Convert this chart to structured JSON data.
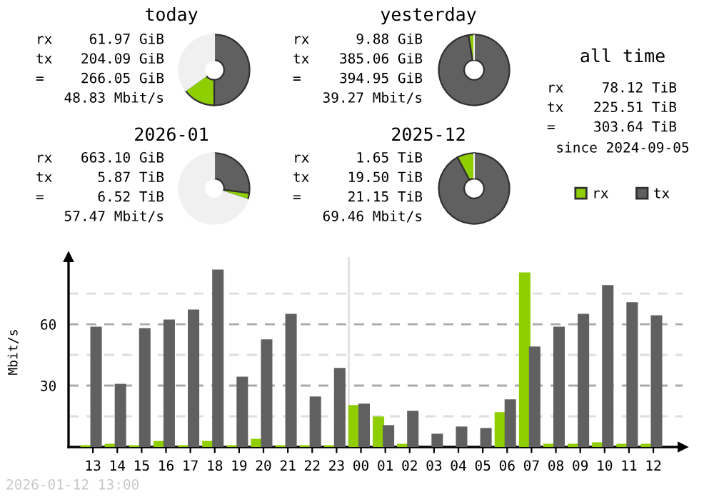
{
  "chart_data": [
    {
      "type": "donut",
      "title": "today",
      "categories": [
        null,
        null,
        null
      ],
      "values": [
        50,
        15.2,
        34.8
      ],
      "colors": [
        "#606060",
        "#8fce00",
        "#f0f0f0"
      ],
      "annotations": [
        "rx",
        "61.97 GiB",
        "tx",
        "204.09 GiB",
        "=",
        "266.05 GiB",
        "48.83 Mbit/s"
      ]
    },
    {
      "type": "donut",
      "title": "yesterday",
      "categories": [
        null,
        null,
        null
      ],
      "values": [
        97.5,
        2.5,
        0
      ],
      "colors": [
        "#606060",
        "#8fce00",
        "#f0f0f0"
      ],
      "annotations": [
        "rx",
        "9.88 GiB",
        "tx",
        "385.06 GiB",
        "=",
        "394.95 GiB",
        "39.27 Mbit/s"
      ]
    },
    {
      "type": "other",
      "title": "all time",
      "annotations": [
        "rx",
        "78.12 TiB",
        "tx",
        "225.51 TiB",
        "=",
        "303.64 TiB",
        "since 2024-09-05"
      ]
    },
    {
      "type": "donut",
      "title": "2026-01",
      "categories": [
        null,
        null,
        null
      ],
      "values": [
        27.1,
        3.0,
        69.9
      ],
      "colors": [
        "#606060",
        "#8fce00",
        "#f0f0f0"
      ],
      "annotations": [
        "rx",
        "663.10 GiB",
        "tx",
        "5.87 TiB",
        "=",
        "6.52 TiB",
        "57.47 Mbit/s"
      ]
    },
    {
      "type": "donut",
      "title": "2025-12",
      "categories": [
        null,
        null,
        null
      ],
      "values": [
        92.2,
        7.8,
        0
      ],
      "colors": [
        "#606060",
        "#8fce00",
        "#f0f0f0"
      ],
      "annotations": [
        "rx",
        "1.65 TiB",
        "tx",
        "19.50 TiB",
        "=",
        "21.15 TiB",
        "69.46 Mbit/s"
      ]
    },
    {
      "type": "bar",
      "ylabel": "Mbit/s",
      "categories": [
        "13",
        "14",
        "15",
        "16",
        "17",
        "18",
        "19",
        "20",
        "21",
        "22",
        "23",
        "00",
        "01",
        "02",
        "03",
        "04",
        "05",
        "06",
        "07",
        "08",
        "09",
        "10",
        "11",
        "12"
      ],
      "series": [
        {
          "name": "rx",
          "color": "#8fce00",
          "values": [
            0.9,
            1.6,
            0.9,
            3.0,
            0.9,
            3.0,
            0.9,
            4.0,
            0.9,
            0.9,
            0.9,
            20.5,
            14.9,
            1.6,
            0,
            0,
            0,
            17.0,
            85.3,
            1.6,
            1.6,
            2.3,
            1.6,
            1.6
          ]
        },
        {
          "name": "tx",
          "color": "#606060",
          "values": [
            58.8,
            30.9,
            58.1,
            62.3,
            67.2,
            86.7,
            34.4,
            52.6,
            65.1,
            24.7,
            38.6,
            21.2,
            10.7,
            17.7,
            6.5,
            10.0,
            9.3,
            23.3,
            49.1,
            58.8,
            65.1,
            79.1,
            70.7,
            64.4
          ]
        }
      ],
      "ylim": [
        0,
        92.8
      ],
      "yticks": [
        {
          "value": 15,
          "label": null
        },
        30,
        {
          "value": 45,
          "label": null
        },
        60,
        {
          "value": 75,
          "label": null
        }
      ],
      "grid": "y",
      "legend": "top right",
      "ref_lines": [
        {
          "axis": "x",
          "value": "00",
          "color": "#e0e0e0"
        }
      ],
      "annotations": [
        "2026-01-12 13:00"
      ]
    }
  ]
}
